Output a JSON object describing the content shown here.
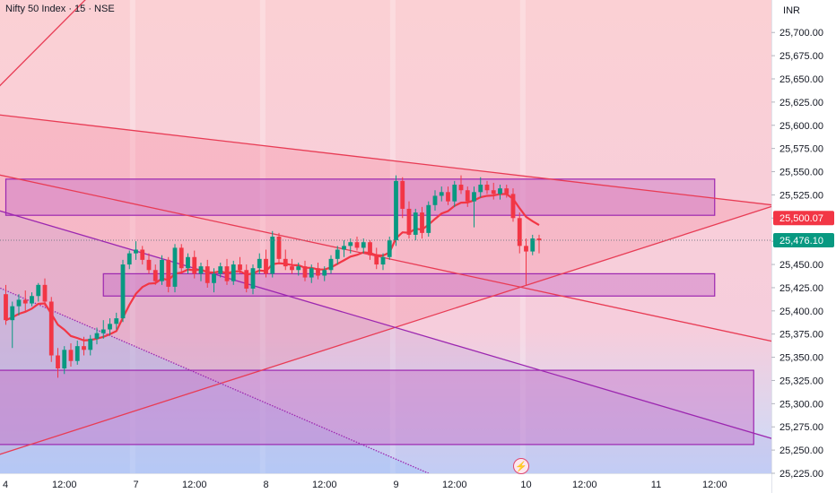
{
  "header": {
    "symbol_title": "Nifty 50 Index · 15 · NSE",
    "currency": "INR"
  },
  "chart_data": {
    "type": "candlestick",
    "title": "Nifty 50 Index · 15 · NSE",
    "ylabel": "INR",
    "ylim": [
      25225,
      25735
    ],
    "y_ticks": [
      25225,
      25250,
      25275,
      25300,
      25325,
      25350,
      25375,
      25400,
      25425,
      25450,
      25475,
      25500,
      25525,
      25550,
      25575,
      25600,
      25625,
      25650,
      25675,
      25700
    ],
    "y_tick_labels": [
      "25,225.00",
      "25,250.00",
      "25,275.00",
      "25,300.00",
      "25,325.00",
      "25,350.00",
      "25,375.00",
      "25,400.00",
      "25,425.00",
      "25,450.00",
      "25,475.00",
      "25,500.00",
      "25,525.00",
      "25,550.00",
      "25,575.00",
      "25,600.00",
      "25,625.00",
      "25,650.00",
      "25,675.00",
      "25,700.00"
    ],
    "x_tick_labels": [
      {
        "label": "4",
        "bar": -1
      },
      {
        "label": "12:00",
        "bar": 9
      },
      {
        "label": "7",
        "bar": 20
      },
      {
        "label": "12:00",
        "bar": 29
      },
      {
        "label": "8",
        "bar": 40
      },
      {
        "label": "12:00",
        "bar": 49
      },
      {
        "label": "9",
        "bar": 60
      },
      {
        "label": "12:00",
        "bar": 69
      },
      {
        "label": "10",
        "bar": 80
      },
      {
        "label": "12:00",
        "bar": 89
      },
      {
        "label": "11",
        "bar": 100
      },
      {
        "label": "12:00",
        "bar": 109
      }
    ],
    "session_separators": [
      20,
      40,
      60,
      80
    ],
    "last_price": 25476.1,
    "last_price_label": "25,476.10",
    "ma_last": 25500.07,
    "ma_last_label": "25,500.07",
    "colors": {
      "up": "#089981",
      "down": "#f23645",
      "ma": "#f23645",
      "trendline_red": "#e83c55",
      "trendline_purple": "#9c27b0",
      "zone_fill": "#c771c7",
      "zone_border": "#9c27b0",
      "background_top": "#fbd0d4",
      "background_bottom": "#c9dcfb",
      "last_price_label_bg": "#089981",
      "ma_label_bg": "#f23645"
    },
    "candles": [
      {
        "o": 25418,
        "h": 25428,
        "l": 25385,
        "c": 25390
      },
      {
        "o": 25390,
        "h": 25410,
        "l": 25360,
        "c": 25405
      },
      {
        "o": 25405,
        "h": 25418,
        "l": 25395,
        "c": 25412
      },
      {
        "o": 25412,
        "h": 25422,
        "l": 25400,
        "c": 25408
      },
      {
        "o": 25408,
        "h": 25420,
        "l": 25405,
        "c": 25416
      },
      {
        "o": 25416,
        "h": 25430,
        "l": 25410,
        "c": 25428
      },
      {
        "o": 25428,
        "h": 25435,
        "l": 25405,
        "c": 25410
      },
      {
        "o": 25410,
        "h": 25415,
        "l": 25345,
        "c": 25352
      },
      {
        "o": 25352,
        "h": 25360,
        "l": 25328,
        "c": 25338
      },
      {
        "o": 25338,
        "h": 25362,
        "l": 25332,
        "c": 25358
      },
      {
        "o": 25358,
        "h": 25365,
        "l": 25340,
        "c": 25346
      },
      {
        "o": 25346,
        "h": 25368,
        "l": 25342,
        "c": 25362
      },
      {
        "o": 25362,
        "h": 25372,
        "l": 25352,
        "c": 25358
      },
      {
        "o": 25358,
        "h": 25374,
        "l": 25352,
        "c": 25370
      },
      {
        "o": 25370,
        "h": 25382,
        "l": 25364,
        "c": 25376
      },
      {
        "o": 25376,
        "h": 25390,
        "l": 25370,
        "c": 25380
      },
      {
        "o": 25380,
        "h": 25392,
        "l": 25374,
        "c": 25386
      },
      {
        "o": 25386,
        "h": 25398,
        "l": 25380,
        "c": 25392
      },
      {
        "o": 25392,
        "h": 25455,
        "l": 25388,
        "c": 25450
      },
      {
        "o": 25450,
        "h": 25465,
        "l": 25445,
        "c": 25462
      },
      {
        "o": 25462,
        "h": 25475,
        "l": 25455,
        "c": 25466
      },
      {
        "o": 25466,
        "h": 25470,
        "l": 25450,
        "c": 25455
      },
      {
        "o": 25455,
        "h": 25462,
        "l": 25440,
        "c": 25444
      },
      {
        "o": 25444,
        "h": 25450,
        "l": 25428,
        "c": 25432
      },
      {
        "o": 25432,
        "h": 25460,
        "l": 25428,
        "c": 25455
      },
      {
        "o": 25455,
        "h": 25458,
        "l": 25420,
        "c": 25426
      },
      {
        "o": 25426,
        "h": 25472,
        "l": 25420,
        "c": 25468
      },
      {
        "o": 25468,
        "h": 25472,
        "l": 25440,
        "c": 25446
      },
      {
        "o": 25446,
        "h": 25462,
        "l": 25440,
        "c": 25458
      },
      {
        "o": 25458,
        "h": 25465,
        "l": 25435,
        "c": 25440
      },
      {
        "o": 25440,
        "h": 25452,
        "l": 25432,
        "c": 25448
      },
      {
        "o": 25448,
        "h": 25455,
        "l": 25425,
        "c": 25430
      },
      {
        "o": 25430,
        "h": 25446,
        "l": 25420,
        "c": 25440
      },
      {
        "o": 25440,
        "h": 25452,
        "l": 25436,
        "c": 25448
      },
      {
        "o": 25448,
        "h": 25456,
        "l": 25428,
        "c": 25432
      },
      {
        "o": 25432,
        "h": 25454,
        "l": 25428,
        "c": 25450
      },
      {
        "o": 25450,
        "h": 25458,
        "l": 25440,
        "c": 25444
      },
      {
        "o": 25444,
        "h": 25450,
        "l": 25420,
        "c": 25424
      },
      {
        "o": 25424,
        "h": 25450,
        "l": 25418,
        "c": 25446
      },
      {
        "o": 25446,
        "h": 25462,
        "l": 25440,
        "c": 25456
      },
      {
        "o": 25456,
        "h": 25466,
        "l": 25436,
        "c": 25440
      },
      {
        "o": 25440,
        "h": 25486,
        "l": 25436,
        "c": 25480
      },
      {
        "o": 25480,
        "h": 25484,
        "l": 25450,
        "c": 25456
      },
      {
        "o": 25456,
        "h": 25466,
        "l": 25444,
        "c": 25448
      },
      {
        "o": 25448,
        "h": 25456,
        "l": 25440,
        "c": 25444
      },
      {
        "o": 25444,
        "h": 25452,
        "l": 25438,
        "c": 25448
      },
      {
        "o": 25448,
        "h": 25454,
        "l": 25432,
        "c": 25436
      },
      {
        "o": 25436,
        "h": 25450,
        "l": 25430,
        "c": 25446
      },
      {
        "o": 25446,
        "h": 25452,
        "l": 25434,
        "c": 25438
      },
      {
        "o": 25438,
        "h": 25448,
        "l": 25432,
        "c": 25444
      },
      {
        "o": 25444,
        "h": 25460,
        "l": 25440,
        "c": 25456
      },
      {
        "o": 25456,
        "h": 25470,
        "l": 25450,
        "c": 25466
      },
      {
        "o": 25466,
        "h": 25476,
        "l": 25458,
        "c": 25470
      },
      {
        "o": 25470,
        "h": 25478,
        "l": 25462,
        "c": 25474
      },
      {
        "o": 25474,
        "h": 25480,
        "l": 25465,
        "c": 25468
      },
      {
        "o": 25468,
        "h": 25478,
        "l": 25462,
        "c": 25474
      },
      {
        "o": 25474,
        "h": 25476,
        "l": 25455,
        "c": 25460
      },
      {
        "o": 25460,
        "h": 25468,
        "l": 25445,
        "c": 25450
      },
      {
        "o": 25450,
        "h": 25462,
        "l": 25444,
        "c": 25458
      },
      {
        "o": 25458,
        "h": 25480,
        "l": 25455,
        "c": 25476
      },
      {
        "o": 25476,
        "h": 25546,
        "l": 25470,
        "c": 25540
      },
      {
        "o": 25540,
        "h": 25544,
        "l": 25500,
        "c": 25510
      },
      {
        "o": 25510,
        "h": 25518,
        "l": 25478,
        "c": 25482
      },
      {
        "o": 25482,
        "h": 25510,
        "l": 25476,
        "c": 25506
      },
      {
        "o": 25506,
        "h": 25512,
        "l": 25478,
        "c": 25484
      },
      {
        "o": 25484,
        "h": 25518,
        "l": 25480,
        "c": 25514
      },
      {
        "o": 25514,
        "h": 25530,
        "l": 25508,
        "c": 25524
      },
      {
        "o": 25524,
        "h": 25534,
        "l": 25518,
        "c": 25528
      },
      {
        "o": 25528,
        "h": 25534,
        "l": 25514,
        "c": 25518
      },
      {
        "o": 25518,
        "h": 25540,
        "l": 25512,
        "c": 25536
      },
      {
        "o": 25536,
        "h": 25546,
        "l": 25526,
        "c": 25530
      },
      {
        "o": 25530,
        "h": 25534,
        "l": 25512,
        "c": 25518
      },
      {
        "o": 25518,
        "h": 25534,
        "l": 25490,
        "c": 25528
      },
      {
        "o": 25528,
        "h": 25544,
        "l": 25522,
        "c": 25536
      },
      {
        "o": 25536,
        "h": 25540,
        "l": 25526,
        "c": 25530
      },
      {
        "o": 25530,
        "h": 25538,
        "l": 25520,
        "c": 25526
      },
      {
        "o": 25526,
        "h": 25536,
        "l": 25520,
        "c": 25532
      },
      {
        "o": 25532,
        "h": 25536,
        "l": 25522,
        "c": 25526
      },
      {
        "o": 25526,
        "h": 25532,
        "l": 25496,
        "c": 25500
      },
      {
        "o": 25500,
        "h": 25506,
        "l": 25462,
        "c": 25470
      },
      {
        "o": 25470,
        "h": 25478,
        "l": 25428,
        "c": 25464
      },
      {
        "o": 25464,
        "h": 25482,
        "l": 25460,
        "c": 25478
      },
      {
        "o": 25478,
        "h": 25482,
        "l": 25462,
        "c": 25476
      }
    ]
  },
  "drawings": {
    "zones": [
      {
        "name": "upper-zone",
        "p1": [
          25542,
          0
        ],
        "p2": [
          25503,
          109
        ]
      },
      {
        "name": "middle-zone",
        "p1": [
          25440,
          15
        ],
        "p2": [
          25416,
          109
        ]
      },
      {
        "name": "lower-zone",
        "p1": [
          25336,
          -2
        ],
        "p2": [
          25256,
          115
        ]
      }
    ],
    "lines": [
      {
        "name": "steep-red-line",
        "color": "red",
        "from": [
          25635,
          -2
        ],
        "to": [
          25790,
          20
        ]
      },
      {
        "name": "upper-red-trendline",
        "color": "red",
        "from": [
          25612,
          -2
        ],
        "to": [
          25514,
          118
        ]
      },
      {
        "name": "middle-red-trendline",
        "color": "red",
        "from": [
          25548,
          -2
        ],
        "to": [
          25367,
          118
        ]
      },
      {
        "name": "rising-red-trendline",
        "color": "red",
        "from": [
          25243,
          -2
        ],
        "to": [
          25513,
          118
        ]
      },
      {
        "name": "purple-trendline",
        "color": "purple",
        "from": [
          25510,
          -2
        ],
        "to": [
          25262,
          118
        ]
      },
      {
        "name": "purple-dotted-trendline",
        "color": "purple",
        "from": [
          25428,
          -2
        ],
        "to": [
          25225,
          65
        ]
      }
    ]
  }
}
